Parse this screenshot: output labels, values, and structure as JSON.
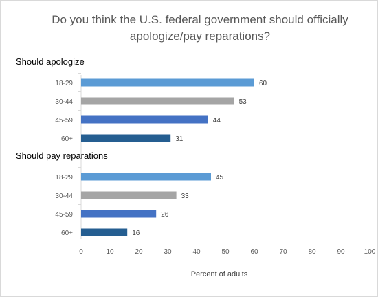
{
  "chart_data": {
    "type": "bar",
    "orientation": "horizontal",
    "title_line1": "Do you think the U.S. federal government should officially",
    "title_line2": "apologize/pay reparations?",
    "xlabel": "Percent of adults",
    "xlim": [
      0,
      100
    ],
    "xticks": [
      "0",
      "10",
      "20",
      "30",
      "40",
      "50",
      "60",
      "70",
      "80",
      "90",
      "100"
    ],
    "grid": false,
    "groups": [
      {
        "label": "Should apologize",
        "bars": [
          {
            "category": "18-29",
            "value": 60,
            "color": "#5b9bd5"
          },
          {
            "category": "30-44",
            "value": 53,
            "color": "#a5a5a5"
          },
          {
            "category": "45-59",
            "value": 44,
            "color": "#4472c4"
          },
          {
            "category": "60+",
            "value": 31,
            "color": "#255e91"
          }
        ]
      },
      {
        "label": "Should pay reparations",
        "bars": [
          {
            "category": "18-29",
            "value": 45,
            "color": "#5b9bd5"
          },
          {
            "category": "30-44",
            "value": 33,
            "color": "#a5a5a5"
          },
          {
            "category": "45-59",
            "value": 26,
            "color": "#4472c4"
          },
          {
            "category": "60+",
            "value": 16,
            "color": "#255e91"
          }
        ]
      }
    ]
  }
}
